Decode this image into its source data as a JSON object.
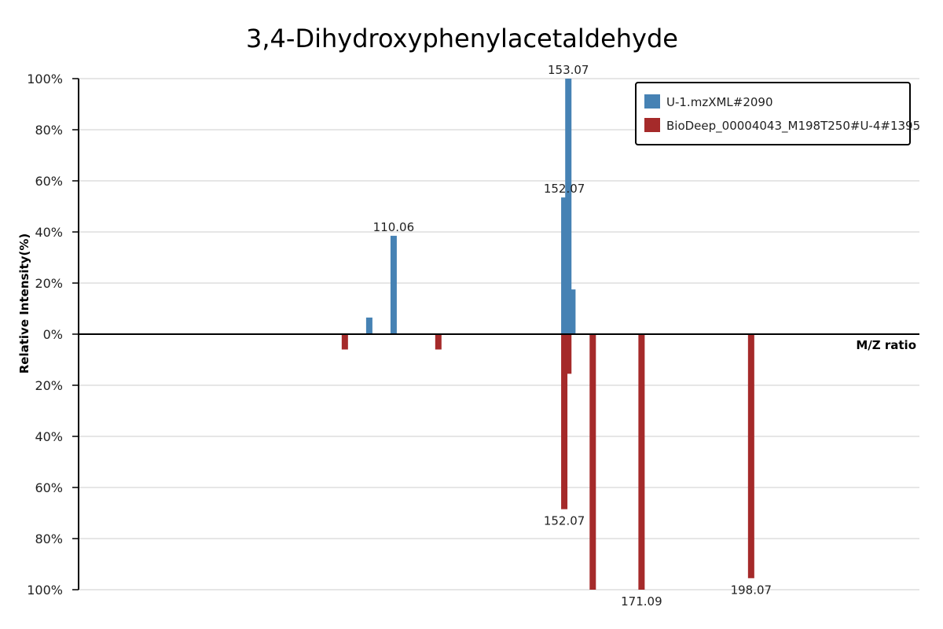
{
  "chart_data": {
    "type": "bar",
    "title": "3,4-Dihydroxyphenylacetaldehyde",
    "xlabel": "M/Z ratio",
    "ylabel": "Relative Intensity(%)",
    "ylim": [
      -100,
      100
    ],
    "xlim": [
      32.5,
      239.5
    ],
    "yticks": [
      {
        "value": 100,
        "label": "100%"
      },
      {
        "value": 80,
        "label": "80%"
      },
      {
        "value": 60,
        "label": "60%"
      },
      {
        "value": 40,
        "label": "40%"
      },
      {
        "value": 20,
        "label": "20%"
      },
      {
        "value": 0,
        "label": "0%"
      },
      {
        "value": -20,
        "label": "20%"
      },
      {
        "value": -40,
        "label": "40%"
      },
      {
        "value": -60,
        "label": "60%"
      },
      {
        "value": -80,
        "label": "80%"
      },
      {
        "value": -100,
        "label": "100%"
      }
    ],
    "grid": true,
    "legend_position": "top-right",
    "series": [
      {
        "name": "U-1.mzXML#2090",
        "color": "#4682b4",
        "peaks": [
          {
            "mz": 104.06,
            "value": 6.5,
            "label": ""
          },
          {
            "mz": 110.06,
            "value": 38.5,
            "label": "110.06"
          },
          {
            "mz": 152.07,
            "value": 53.5,
            "label": "152.07"
          },
          {
            "mz": 153.07,
            "value": 100,
            "label": "153.07"
          },
          {
            "mz": 154.07,
            "value": 17.5,
            "label": ""
          }
        ]
      },
      {
        "name": "BioDeep_00004043_M198T250#U-4#1395",
        "color": "#a52a2a",
        "peaks": [
          {
            "mz": 98.05,
            "value": -6,
            "label": ""
          },
          {
            "mz": 121.07,
            "value": -6,
            "label": ""
          },
          {
            "mz": 152.07,
            "value": -68.5,
            "label": "152.07"
          },
          {
            "mz": 153.07,
            "value": -15.5,
            "label": ""
          },
          {
            "mz": 159.08,
            "value": -100,
            "label": ""
          },
          {
            "mz": 171.09,
            "value": -100,
            "label": "171.09"
          },
          {
            "mz": 198.07,
            "value": -95.5,
            "label": "198.07"
          }
        ]
      }
    ]
  }
}
